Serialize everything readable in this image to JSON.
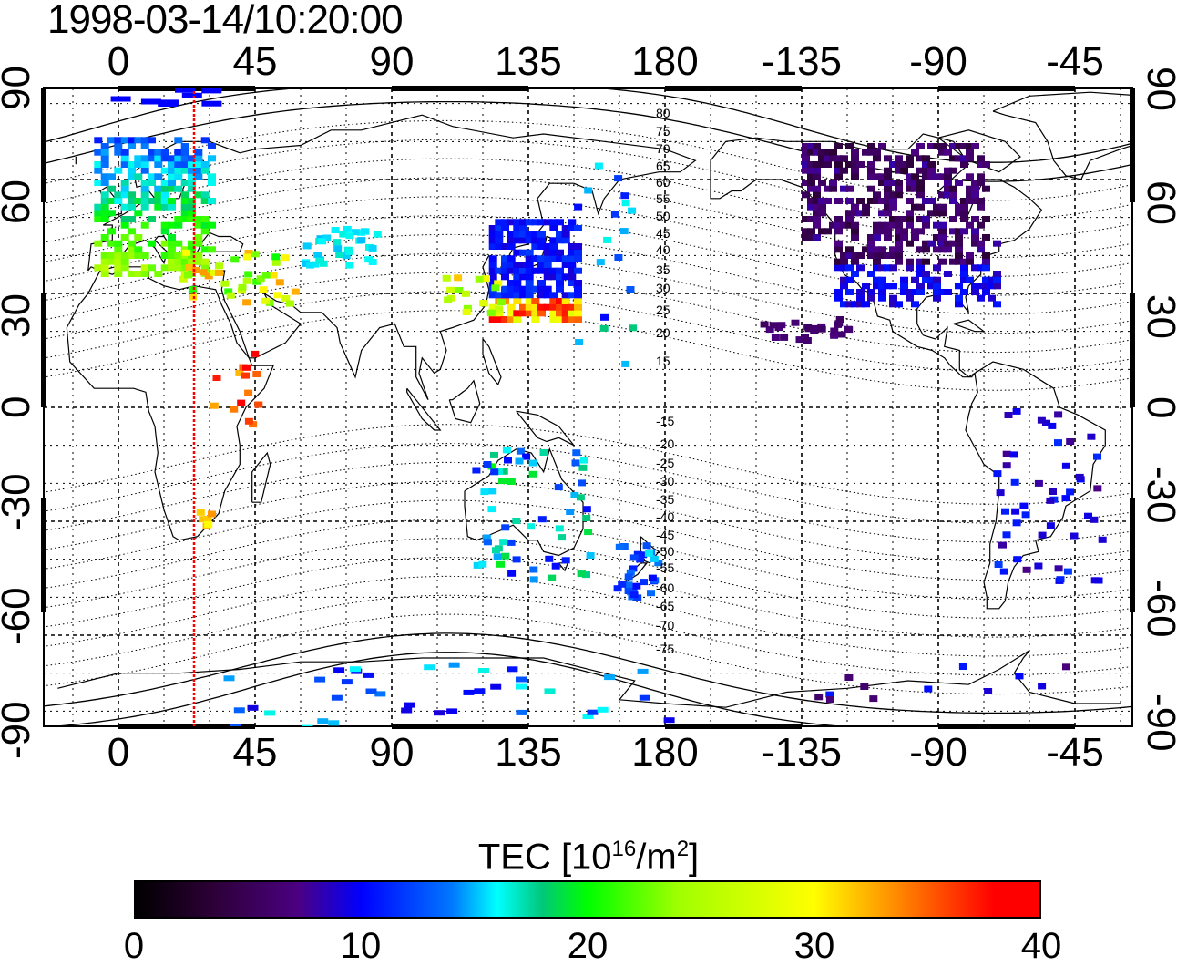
{
  "title": "1998-03-14/10:20:00",
  "x_tick_labels_top": [
    "0",
    "45",
    "90",
    "135",
    "180",
    "-135",
    "-90",
    "-45"
  ],
  "x_tick_labels_bottom": [
    "0",
    "45",
    "90",
    "135",
    "180",
    "-135",
    "-90",
    "-45"
  ],
  "y_tick_labels_left": [
    "90",
    "60",
    "30",
    "0",
    "-30",
    "-60",
    "-90"
  ],
  "y_tick_labels_right": [
    "90",
    "60",
    "30",
    "0",
    "-30",
    "-60",
    "-90"
  ],
  "contour_labels": [
    "80",
    "75",
    "70",
    "65",
    "60",
    "55",
    "50",
    "45",
    "40",
    "35",
    "30",
    "25",
    "20",
    "15",
    "-15",
    "-20",
    "-25",
    "-30",
    "-35",
    "-40",
    "-45",
    "-50",
    "-55",
    "-60",
    "-65",
    "-70",
    "-75"
  ],
  "colorbar": {
    "title_main": "TEC  [10",
    "title_sup1": "16",
    "title_mid": "/m",
    "title_sup2": "2",
    "title_end": "]",
    "min": 0,
    "max": 40,
    "tick_labels": [
      "0",
      "10",
      "20",
      "30",
      "40"
    ]
  },
  "colors": {
    "terminator_line": "#ff0000",
    "coastline": "#000000",
    "grid": "#000000"
  },
  "terminator_longitude": 25,
  "tec_clusters": [
    {
      "region": "Europe",
      "lon": [
        -5,
        30
      ],
      "lat": [
        35,
        72
      ],
      "tec": 12
    },
    {
      "region": "East Asia",
      "lon": [
        125,
        155
      ],
      "lat": [
        20,
        50
      ],
      "tec": 10
    },
    {
      "region": "North America",
      "lon": [
        -135,
        -70
      ],
      "lat": [
        25,
        70
      ],
      "tec": 5
    },
    {
      "region": "Australia",
      "lon": [
        115,
        155
      ],
      "lat": [
        -45,
        -10
      ],
      "tec": 16
    },
    {
      "region": "South America",
      "lon": [
        -75,
        -35
      ],
      "lat": [
        -45,
        0
      ],
      "tec": 9
    },
    {
      "region": "Antarctica",
      "lon": [
        30,
        180
      ],
      "lat": [
        -85,
        -65
      ],
      "tec": 12
    }
  ]
}
